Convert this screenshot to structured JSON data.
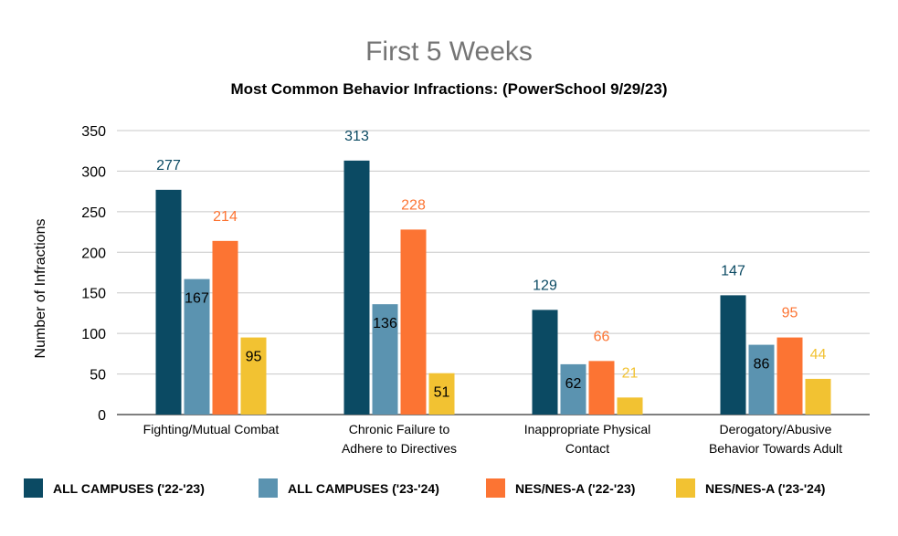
{
  "chart_data": {
    "type": "bar",
    "title": "First 5 Weeks",
    "subtitle": "Most Common Behavior Infractions: (PowerSchool 9/29/23)",
    "ylabel": "Number of Infractions",
    "xlabel": "",
    "ylim": [
      0,
      350
    ],
    "yticks": [
      "0",
      "50",
      "100",
      "150",
      "200",
      "250",
      "300",
      "350"
    ],
    "ytick_values": [
      0,
      50,
      100,
      150,
      200,
      250,
      300,
      350
    ],
    "grid": true,
    "legend_position": "bottom",
    "categories": [
      [
        "Fighting/Mutual Combat"
      ],
      [
        "Chronic Failure to",
        "Adhere to Directives"
      ],
      [
        "Inappropriate Physical",
        "Contact"
      ],
      [
        "Derogatory/Abusive",
        "Behavior Towards Adult"
      ]
    ],
    "series": [
      {
        "name": "ALL CAMPUSES ('22-'23)",
        "color": "#0b4a63",
        "label_color": "#0b4a63",
        "values": [
          277,
          313,
          129,
          147
        ],
        "labels": [
          "277",
          "313",
          "129",
          "147"
        ]
      },
      {
        "name": "ALL CAMPUSES ('23-'24)",
        "color": "#5b93b0",
        "label_color": "#5b93b0",
        "values": [
          167,
          136,
          62,
          86
        ],
        "labels": [
          "167",
          "136",
          "62",
          "86"
        ]
      },
      {
        "name": "NES/NES-A ('22-'23)",
        "color": "#fc7433",
        "label_color": "#fc7433",
        "values": [
          214,
          228,
          66,
          95
        ],
        "labels": [
          "214",
          "228",
          "66",
          "95"
        ]
      },
      {
        "name": "NES/NES-A ('23-'24)",
        "color": "#f2c232",
        "label_color": "#f2c232",
        "values": [
          95,
          51,
          21,
          44
        ],
        "labels": [
          "95",
          "51",
          "21",
          "44"
        ]
      }
    ]
  }
}
